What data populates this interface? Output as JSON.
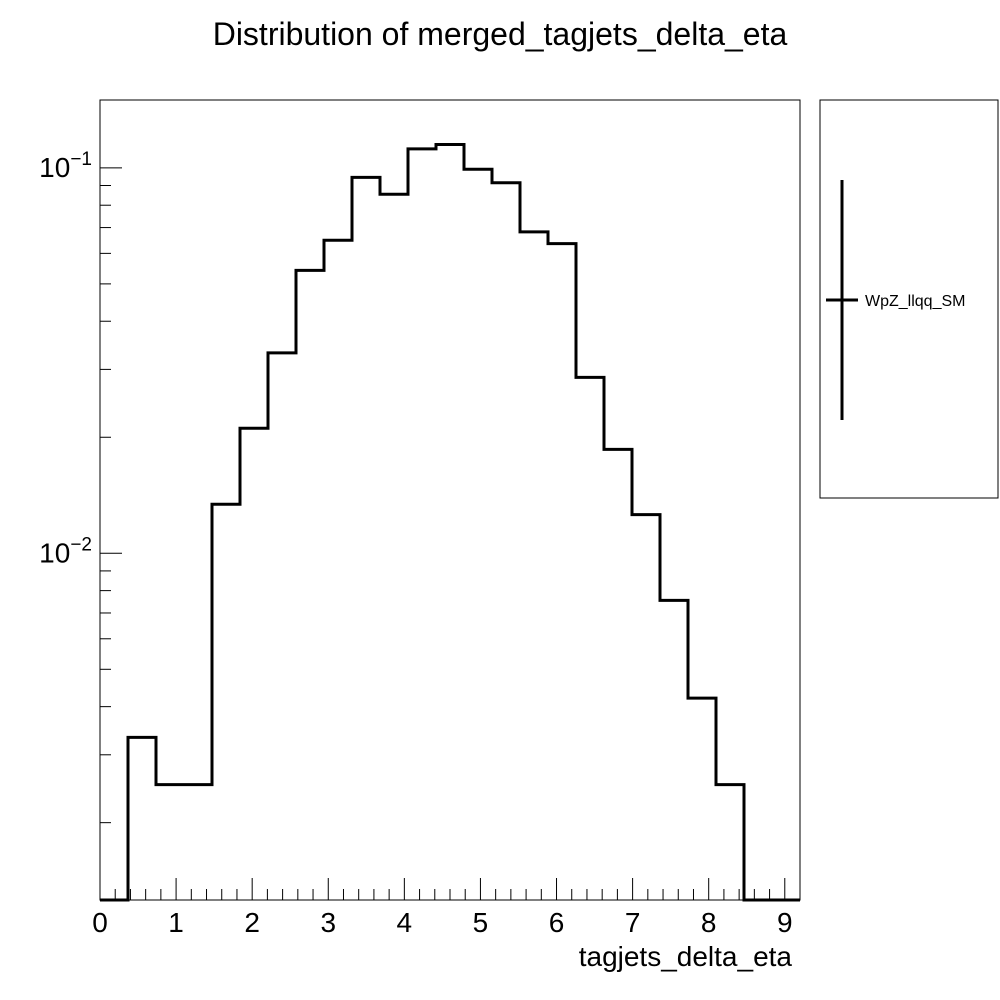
{
  "chart_data": {
    "type": "histogram",
    "title": "Distribution of merged_tagjets_delta_eta",
    "xlabel": "tagjets_delta_eta",
    "ylabel": "",
    "ylog": true,
    "xlim": [
      0,
      9.2
    ],
    "ylim": [
      0.00126,
      0.15
    ],
    "xticks": [
      "0",
      "1",
      "2",
      "3",
      "4",
      "5",
      "6",
      "7",
      "8",
      "9"
    ],
    "ytick_labels": [
      {
        "value": 0.1,
        "base": "10",
        "exp": "−1"
      },
      {
        "value": 0.01,
        "base": "10",
        "exp": "−2"
      }
    ],
    "legend": {
      "position": "right",
      "entries": [
        "WpZ_llqq_SM"
      ]
    },
    "series": [
      {
        "name": "WpZ_llqq_SM",
        "bin_edges": [
          0,
          0.368,
          0.736,
          1.104,
          1.472,
          1.84,
          2.208,
          2.576,
          2.944,
          3.312,
          3.68,
          4.048,
          4.416,
          4.784,
          5.152,
          5.52,
          5.888,
          6.256,
          6.624,
          6.992,
          7.36,
          7.728,
          8.096,
          8.464,
          8.832,
          9.2
        ],
        "values": [
          0.00126,
          0.00333,
          0.00251,
          0.00251,
          0.0134,
          0.0211,
          0.0331,
          0.0542,
          0.0649,
          0.0945,
          0.0854,
          0.112,
          0.115,
          0.0992,
          0.0915,
          0.0682,
          0.0636,
          0.0286,
          0.0186,
          0.0126,
          0.00755,
          0.00421,
          0.00251,
          0.00126,
          0.00126
        ]
      }
    ]
  }
}
